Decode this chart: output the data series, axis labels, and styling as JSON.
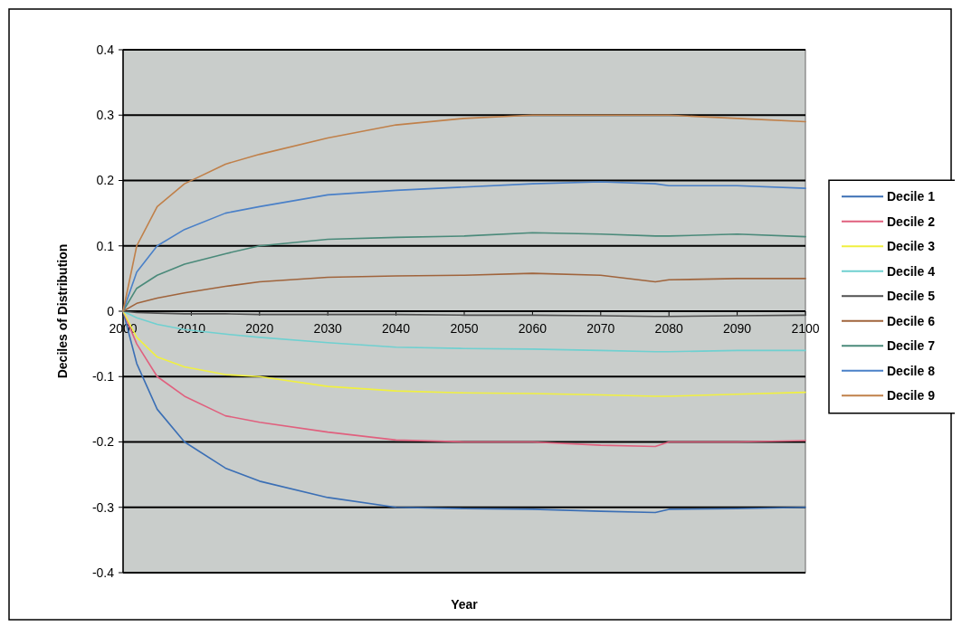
{
  "chart_data": {
    "type": "line",
    "xlabel": "Year",
    "ylabel": "Deciles of Distribution",
    "xlim": [
      2000,
      2100
    ],
    "xticks": [
      2000,
      2010,
      2020,
      2030,
      2040,
      2050,
      2060,
      2070,
      2080,
      2090,
      2100
    ],
    "ylim": [
      -0.4,
      0.4
    ],
    "yticks": [
      -0.4,
      -0.3,
      -0.2,
      -0.1,
      0,
      0.1,
      0.2,
      0.3,
      0.4
    ],
    "grid": "y",
    "legend": "right",
    "marker": "none",
    "line_style": "solid",
    "x": [
      2000,
      2002,
      2005,
      2009,
      2015,
      2020,
      2030,
      2040,
      2050,
      2060,
      2070,
      2078,
      2080,
      2090,
      2100
    ],
    "series": [
      {
        "name": "Decile 1",
        "color": "#3b6fb5",
        "values": [
          0,
          -0.08,
          -0.15,
          -0.2,
          -0.24,
          -0.26,
          -0.285,
          -0.3,
          -0.302,
          -0.303,
          -0.306,
          -0.308,
          -0.303,
          -0.302,
          -0.3
        ]
      },
      {
        "name": "Decile 2",
        "color": "#e0607e",
        "values": [
          0,
          -0.05,
          -0.1,
          -0.13,
          -0.16,
          -0.17,
          -0.185,
          -0.197,
          -0.2,
          -0.2,
          -0.205,
          -0.207,
          -0.2,
          -0.2,
          -0.198
        ]
      },
      {
        "name": "Decile 3",
        "color": "#f0f040",
        "values": [
          0,
          -0.04,
          -0.07,
          -0.085,
          -0.097,
          -0.1,
          -0.115,
          -0.122,
          -0.125,
          -0.126,
          -0.128,
          -0.13,
          -0.13,
          -0.127,
          -0.124
        ]
      },
      {
        "name": "Decile 4",
        "color": "#6fd0d0",
        "values": [
          0,
          -0.01,
          -0.02,
          -0.028,
          -0.035,
          -0.04,
          -0.048,
          -0.055,
          -0.057,
          -0.058,
          -0.06,
          -0.062,
          -0.062,
          -0.06,
          -0.06
        ]
      },
      {
        "name": "Decile 5",
        "color": "#505050",
        "values": [
          0,
          -0.002,
          -0.003,
          -0.004,
          -0.004,
          -0.005,
          -0.005,
          -0.005,
          -0.006,
          -0.006,
          -0.007,
          -0.008,
          -0.008,
          -0.007,
          -0.006
        ]
      },
      {
        "name": "Decile 6",
        "color": "#a0643c",
        "values": [
          0,
          0.012,
          0.02,
          0.028,
          0.038,
          0.045,
          0.052,
          0.054,
          0.055,
          0.058,
          0.055,
          0.045,
          0.048,
          0.05,
          0.05
        ]
      },
      {
        "name": "Decile 7",
        "color": "#4a8a7a",
        "values": [
          0,
          0.035,
          0.055,
          0.072,
          0.088,
          0.1,
          0.11,
          0.113,
          0.115,
          0.12,
          0.118,
          0.115,
          0.115,
          0.118,
          0.114
        ]
      },
      {
        "name": "Decile 8",
        "color": "#4a80c8",
        "values": [
          0,
          0.06,
          0.1,
          0.125,
          0.15,
          0.16,
          0.178,
          0.185,
          0.19,
          0.195,
          0.198,
          0.195,
          0.192,
          0.192,
          0.188
        ]
      },
      {
        "name": "Decile 9",
        "color": "#c0804a",
        "values": [
          0,
          0.1,
          0.16,
          0.195,
          0.225,
          0.24,
          0.265,
          0.285,
          0.295,
          0.3,
          0.3,
          0.3,
          0.3,
          0.295,
          0.29
        ]
      }
    ]
  }
}
